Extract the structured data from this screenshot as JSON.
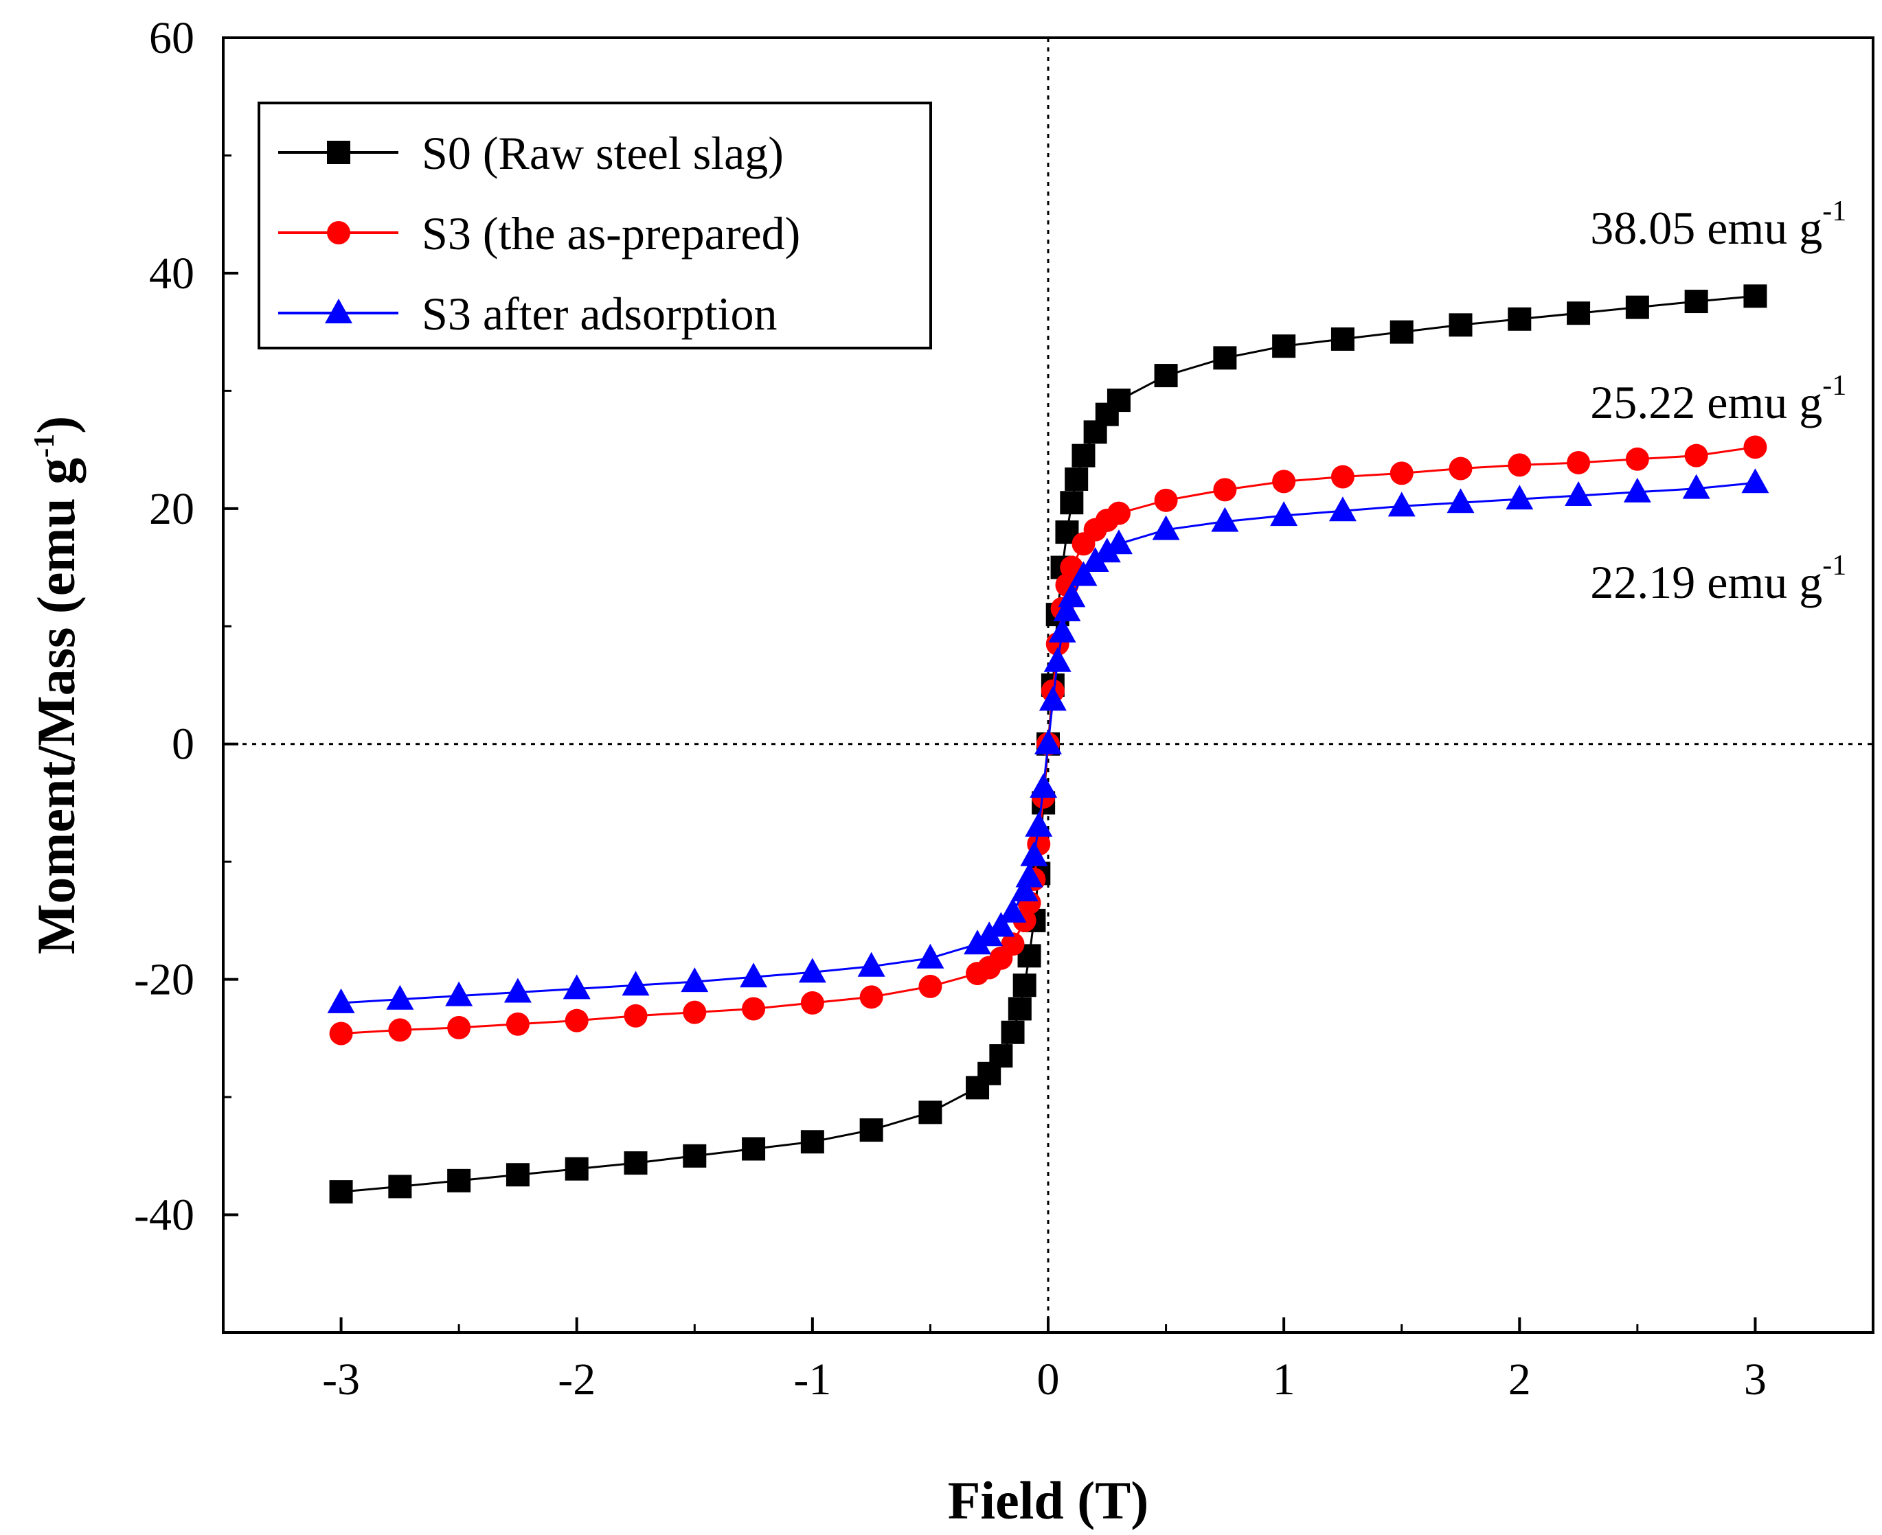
{
  "chart_data": {
    "type": "line",
    "title": "",
    "xlabel": "Field (T)",
    "ylabel_main": "Moment/Mass (emu g",
    "ylabel_sup": "-1",
    "ylabel_close": ")",
    "xlim": [
      -3.5,
      3.5
    ],
    "ylim": [
      -50,
      60
    ],
    "xticks": [
      -3,
      -2,
      -1,
      0,
      1,
      2,
      3
    ],
    "xtick_labels": [
      "-3",
      "-2",
      "-1",
      "0",
      "1",
      "2",
      "3"
    ],
    "yticks": [
      -40,
      -20,
      0,
      20,
      40,
      60
    ],
    "ytick_labels": [
      "-40",
      "-20",
      "0",
      "20",
      "40",
      "60"
    ],
    "grid": false,
    "reference_lines": {
      "x": 0,
      "y": 0,
      "style": "dotted"
    },
    "legend_position": "top-left",
    "series": [
      {
        "name": "S0 (Raw steel slag)",
        "color": "#000000",
        "marker": "square",
        "x": [
          -3,
          -2.75,
          -2.5,
          -2.25,
          -2,
          -1.75,
          -1.5,
          -1.25,
          -1,
          -0.75,
          -0.5,
          -0.3,
          -0.25,
          -0.2,
          -0.15,
          -0.12,
          -0.1,
          -0.08,
          -0.06,
          -0.04,
          -0.02,
          0,
          0.02,
          0.04,
          0.06,
          0.08,
          0.1,
          0.12,
          0.15,
          0.2,
          0.25,
          0.3,
          0.5,
          0.75,
          1,
          1.25,
          1.5,
          1.75,
          2,
          2.25,
          2.5,
          2.75,
          3
        ],
        "y": [
          -38.05,
          -37.6,
          -37.1,
          -36.6,
          -36.1,
          -35.6,
          -35.0,
          -34.4,
          -33.8,
          -32.8,
          -31.3,
          -29.2,
          -28.0,
          -26.5,
          -24.5,
          -22.5,
          -20.5,
          -18.0,
          -15.0,
          -11.0,
          -5.0,
          0,
          5.0,
          11.0,
          15.0,
          18.0,
          20.5,
          22.5,
          24.5,
          26.5,
          28.0,
          29.2,
          31.3,
          32.8,
          33.8,
          34.4,
          35.0,
          35.6,
          36.1,
          36.6,
          37.1,
          37.6,
          38.05
        ]
      },
      {
        "name": "S3 (the as-prepared)",
        "color": "#ff0000",
        "marker": "circle",
        "x": [
          -3,
          -2.75,
          -2.5,
          -2.25,
          -2,
          -1.75,
          -1.5,
          -1.25,
          -1,
          -0.75,
          -0.5,
          -0.3,
          -0.25,
          -0.2,
          -0.15,
          -0.1,
          -0.08,
          -0.06,
          -0.04,
          -0.02,
          0,
          0.02,
          0.04,
          0.06,
          0.08,
          0.1,
          0.15,
          0.2,
          0.25,
          0.3,
          0.5,
          0.75,
          1,
          1.25,
          1.5,
          1.75,
          2,
          2.25,
          2.5,
          2.75,
          3
        ],
        "y": [
          -24.6,
          -24.3,
          -24.1,
          -23.8,
          -23.5,
          -23.1,
          -22.8,
          -22.5,
          -22.0,
          -21.5,
          -20.6,
          -19.5,
          -19.0,
          -18.2,
          -17.0,
          -15.0,
          -13.5,
          -11.5,
          -8.5,
          -4.5,
          0,
          4.5,
          8.5,
          11.5,
          13.5,
          15.0,
          17.0,
          18.2,
          19.0,
          19.6,
          20.7,
          21.6,
          22.3,
          22.7,
          23.0,
          23.4,
          23.7,
          23.9,
          24.2,
          24.5,
          25.22
        ]
      },
      {
        "name": "S3 after adsorption",
        "color": "#0000ff",
        "marker": "triangle",
        "x": [
          -3,
          -2.75,
          -2.5,
          -2.25,
          -2,
          -1.75,
          -1.5,
          -1.25,
          -1,
          -0.75,
          -0.5,
          -0.3,
          -0.25,
          -0.2,
          -0.15,
          -0.1,
          -0.08,
          -0.06,
          -0.04,
          -0.02,
          0,
          0.02,
          0.04,
          0.06,
          0.08,
          0.1,
          0.15,
          0.2,
          0.25,
          0.3,
          0.5,
          0.75,
          1,
          1.25,
          1.5,
          1.75,
          2,
          2.25,
          2.5,
          2.75,
          3
        ],
        "y": [
          -22.0,
          -21.7,
          -21.4,
          -21.1,
          -20.8,
          -20.5,
          -20.2,
          -19.8,
          -19.4,
          -18.9,
          -18.2,
          -17.0,
          -16.3,
          -15.5,
          -14.3,
          -12.5,
          -11.3,
          -9.5,
          -7.0,
          -3.7,
          0,
          3.7,
          7.0,
          9.5,
          11.3,
          12.5,
          14.3,
          15.5,
          16.3,
          17.0,
          18.2,
          18.9,
          19.4,
          19.8,
          20.2,
          20.5,
          20.8,
          21.1,
          21.4,
          21.7,
          22.19
        ]
      }
    ],
    "annotations": [
      {
        "value": "38.05 emu g",
        "sup": "-1",
        "x": 2.3,
        "y": 42.5
      },
      {
        "value": "25.22 emu g",
        "sup": "-1",
        "x": 2.3,
        "y": 27.7
      },
      {
        "value": "22.19 emu g",
        "sup": "-1",
        "x": 2.3,
        "y": 12.4
      }
    ]
  }
}
